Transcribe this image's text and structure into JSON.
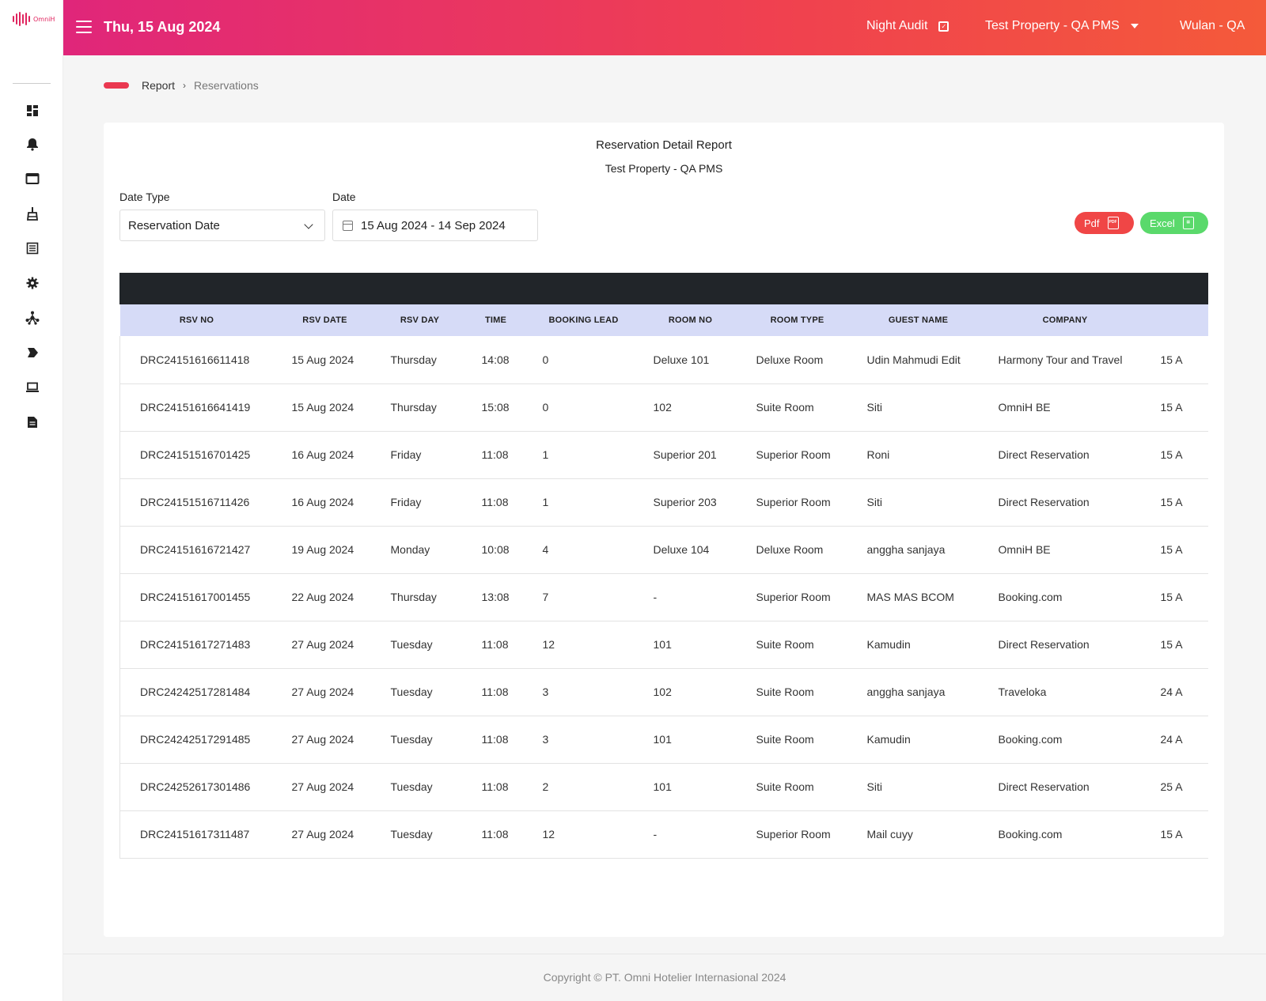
{
  "app": {
    "logo_text": "OmniH"
  },
  "header": {
    "date": "Thu, 15 Aug 2024",
    "night_audit": "Night Audit",
    "property": "Test Property - QA PMS",
    "user": "Wulan - QA"
  },
  "sidebar": {
    "icons": [
      "dashboard-icon",
      "bell-icon",
      "window-icon",
      "broom-icon",
      "list-icon",
      "gear-icon",
      "network-icon",
      "tag-icon",
      "laptop-icon",
      "report-icon"
    ]
  },
  "breadcrumb": {
    "parent": "Report",
    "current": "Reservations"
  },
  "report": {
    "title": "Reservation Detail Report",
    "subtitle": "Test Property - QA PMS",
    "date_type_label": "Date Type",
    "date_type_value": "Reservation Date",
    "date_label": "Date",
    "date_range": "15 Aug 2024 - 14 Sep 2024",
    "pdf_label": "Pdf",
    "excel_label": "Excel"
  },
  "table": {
    "headers": [
      "RSV NO",
      "RSV DATE",
      "RSV DAY",
      "TIME",
      "BOOKING LEAD",
      "ROOM NO",
      "ROOM TYPE",
      "GUEST NAME",
      "COMPANY",
      ""
    ],
    "rows": [
      [
        "DRC24151616611418",
        "15 Aug 2024",
        "Thursday",
        "14:08",
        "0",
        "Deluxe 101",
        "Deluxe Room",
        "Udin Mahmudi Edit",
        "Harmony Tour and Travel",
        "15 A"
      ],
      [
        "DRC24151616641419",
        "15 Aug 2024",
        "Thursday",
        "15:08",
        "0",
        "102",
        "Suite Room",
        "Siti",
        "OmniH BE",
        "15 A"
      ],
      [
        "DRC24151516701425",
        "16 Aug 2024",
        "Friday",
        "11:08",
        "1",
        "Superior 201",
        "Superior Room",
        "Roni",
        "Direct Reservation",
        "15 A"
      ],
      [
        "DRC24151516711426",
        "16 Aug 2024",
        "Friday",
        "11:08",
        "1",
        "Superior 203",
        "Superior Room",
        "Siti",
        "Direct Reservation",
        "15 A"
      ],
      [
        "DRC24151616721427",
        "19 Aug 2024",
        "Monday",
        "10:08",
        "4",
        "Deluxe 104",
        "Deluxe Room",
        "anggha sanjaya",
        "OmniH BE",
        "15 A"
      ],
      [
        "DRC24151617001455",
        "22 Aug 2024",
        "Thursday",
        "13:08",
        "7",
        "-",
        "Superior Room",
        "MAS MAS BCOM",
        "Booking.com",
        "15 A"
      ],
      [
        "DRC24151617271483",
        "27 Aug 2024",
        "Tuesday",
        "11:08",
        "12",
        "101",
        "Suite Room",
        "Kamudin",
        "Direct Reservation",
        "15 A"
      ],
      [
        "DRC24242517281484",
        "27 Aug 2024",
        "Tuesday",
        "11:08",
        "3",
        "102",
        "Suite Room",
        "anggha sanjaya",
        "Traveloka",
        "24 A"
      ],
      [
        "DRC24242517291485",
        "27 Aug 2024",
        "Tuesday",
        "11:08",
        "3",
        "101",
        "Suite Room",
        "Kamudin",
        "Booking.com",
        "24 A"
      ],
      [
        "DRC24252617301486",
        "27 Aug 2024",
        "Tuesday",
        "11:08",
        "2",
        "101",
        "Suite Room",
        "Siti",
        "Direct Reservation",
        "25 A"
      ],
      [
        "DRC24151617311487",
        "27 Aug 2024",
        "Tuesday",
        "11:08",
        "12",
        "-",
        "Superior Room",
        "Mail cuyy",
        "Booking.com",
        "15 A"
      ]
    ]
  },
  "footer": {
    "copyright": "Copyright © PT. Omni Hotelier Internasional 2024"
  }
}
